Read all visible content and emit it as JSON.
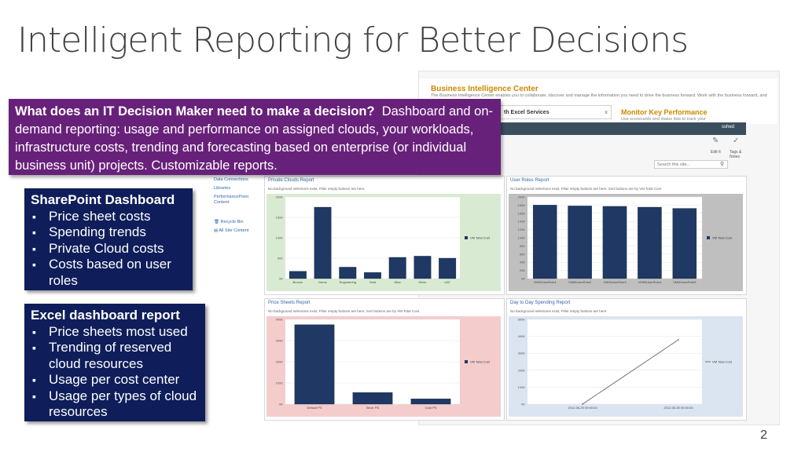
{
  "slide": {
    "title": "Intelligent Reporting for Better Decisions",
    "number": "2"
  },
  "callout": {
    "lead": "What does an IT Decision Maker need to make a decision?",
    "text": "Dashboard and on-demand reporting: usage and performance on assigned clouds, your workloads, infrastructure costs, trending and forecasting based on enterprise (or individual business unit) projects.  Customizable reports."
  },
  "sharepoint_box": {
    "title": "SharePoint Dashboard",
    "items": [
      "Price sheet costs",
      "Spending trends",
      "Private Cloud costs",
      "Costs based on user roles"
    ]
  },
  "excel_box": {
    "title": "Excel dashboard report",
    "items": [
      "Price sheets most used",
      "Trending of reserved cloud resources",
      "Usage per cost center",
      "Usage per types of cloud resources"
    ]
  },
  "screenshot": {
    "site_title": "Business Intelligence Center",
    "site_desc": "The Business Intelligence Center enables you to collaborate, discover and manage the information you need to drive the business forward. Work with the business forward, and activity at a time.",
    "tab_label": "th Excel Services",
    "tab_close": "x",
    "monitor_title": "Monitor Key Performance",
    "monitor_sub": "Use scorecards and status lists to track your",
    "user": "sshed",
    "edit_label": "Edit It",
    "tag_label": "Tags & Notes",
    "search_placeholder": "Search this site...",
    "colors": {
      "accent": "#cc8800",
      "bar": "#1f3864",
      "nav": "#3b4e5e"
    },
    "sidebar": {
      "items": [
        "Data Connections",
        "Libraries",
        "PerformancePoint Content"
      ],
      "recycle": "Recycle Bin",
      "all_content": "All Site Content"
    }
  },
  "chart_data": [
    {
      "type": "bar",
      "title": "Private Clouds Report",
      "filter": "No background selections exist, Filter empty buttons are here.",
      "categories": [
        "Bronze",
        "Demo",
        "Engineering",
        "Gold",
        "Misc",
        "Silver",
        "UAT"
      ],
      "values": [
        18,
        175,
        28,
        15,
        52,
        55,
        50
      ],
      "ylim": [
        0,
        200
      ],
      "yticks": [
        "0K",
        "50K",
        "100K",
        "150K",
        "200K"
      ],
      "legend": "VM Total Cost",
      "background": "#d9ead3"
    },
    {
      "type": "bar",
      "title": "User Roles Report",
      "filter": "No background selections exist, Filter empty buttons are here, Sort buttons are by VM Total Cost",
      "categories": [
        "VMM\\UserRole1",
        "VMM\\UserRole2",
        "VMM\\UserRole3",
        "VMM\\UserRole4",
        "VMM\\UserRole5"
      ],
      "values": [
        180,
        178,
        177,
        175,
        172
      ],
      "ylim": [
        0,
        200
      ],
      "yticks": [
        "0K",
        "20K",
        "40K",
        "60K",
        "80K",
        "100K",
        "120K",
        "140K",
        "160K",
        "180K",
        "200K"
      ],
      "legend": "VM Total Cost",
      "background": "#bfbfbf"
    },
    {
      "type": "bar",
      "title": "Price Sheets Report",
      "filter": "No background selections exist, Filter empty buttons are here, Sort buttons are by VM Total Cost",
      "categories": [
        "Default PS",
        "Silver PS",
        "Gold PS"
      ],
      "values": [
        375,
        55,
        25
      ],
      "ylim": [
        0,
        400
      ],
      "yticks": [
        "0K",
        "100K",
        "200K",
        "300K",
        "400K"
      ],
      "legend": "VM Total Cost",
      "background": "#f4cccc"
    },
    {
      "type": "line",
      "title": "Day to Day Spending Report",
      "filter": "No background selections exist, Filter empty buttons are here.",
      "x": [
        "2012-06-29 00:00:00",
        "2012-06-30 00:00:00"
      ],
      "values": [
        0,
        380
      ],
      "ylim": [
        0,
        500
      ],
      "yticks": [
        "0K",
        "100K",
        "200K",
        "300K",
        "400K",
        "500K"
      ],
      "legend": "VM Total Cost",
      "background": "#dbe5f1"
    }
  ]
}
